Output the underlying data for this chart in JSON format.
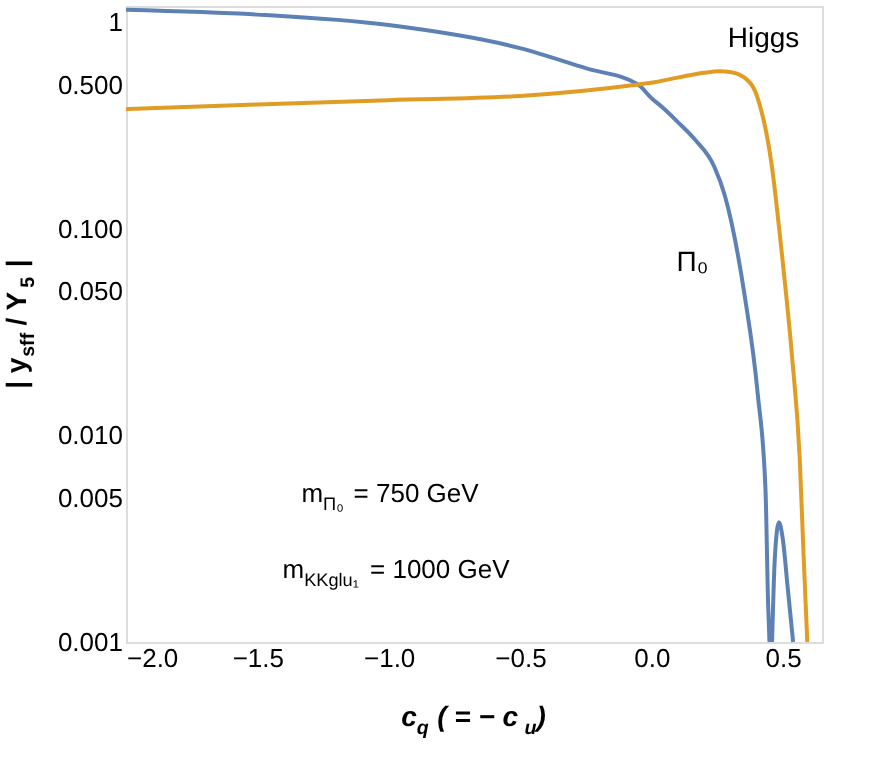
{
  "chart_data": {
    "type": "line",
    "xlabel": "c$_{q}$ ( = − c$_{u}$)",
    "ylabel": "| y$_{sff}$ / Y$_{5}$ |",
    "series": [
      {
        "name": "Π₀",
        "color": "#5e81b5",
        "x": [
          -2,
          -1.5,
          -1,
          -0.5,
          -0.25,
          -0.05,
          0,
          0.04,
          0.1,
          0.167,
          0.24,
          0.28,
          0.355,
          0.405,
          0.435,
          0.445,
          0.45,
          0.455,
          0.46,
          0.47,
          0.486,
          0.5,
          0.52,
          0.54
        ],
        "values": [
          1.15,
          1.09,
          0.97,
          0.75,
          0.6,
          0.5,
          0.43,
          0.39,
          0.33,
          0.27,
          0.2,
          0.145,
          0.048,
          0.016,
          0.0054,
          0.0015,
          0.001,
          null,
          0.001,
          0.0025,
          0.0038,
          0.0032,
          0.0018,
          0.001
        ]
      },
      {
        "name": "Higgs",
        "color": "#e19c24",
        "x": [
          -2,
          -1.5,
          -1,
          -0.5,
          -0.05,
          0,
          0.1,
          0.2,
          0.26,
          0.3,
          0.355,
          0.405,
          0.457,
          0.5,
          0.536,
          0.565,
          0.58,
          0.594
        ],
        "values": [
          0.38,
          0.4,
          0.42,
          0.44,
          0.5,
          0.51,
          0.54,
          0.57,
          0.58,
          0.575,
          0.54,
          0.43,
          0.21,
          0.07,
          0.024,
          0.0078,
          0.0026,
          0.001
        ]
      }
    ],
    "log": "y",
    "xlim": [
      -2,
      0.65
    ],
    "ylim": [
      0.001,
      1.2
    ],
    "xticks": [
      {
        "value": -2,
        "label": "−2.0"
      },
      {
        "value": -1.5,
        "label": "−1.5"
      },
      {
        "value": -1,
        "label": "−1.0"
      },
      {
        "value": -0.5,
        "label": "−0.5"
      },
      {
        "value": 0,
        "label": "0.0"
      },
      {
        "value": 0.5,
        "label": "0.5"
      }
    ],
    "yticks": [
      0.001,
      0.005,
      {
        "value": 0.01,
        "label": "0.010"
      },
      {
        "value": 0.05,
        "label": "0.050"
      },
      {
        "value": 0.1,
        "label": "0.100"
      },
      {
        "value": 0.5,
        "label": "0.500"
      },
      1
    ],
    "annotations": [
      "m$_{Π₀}$ = 750 GeV",
      "m$_{KKglu₁}$ = 1000 GeV"
    ],
    "grid": false
  }
}
